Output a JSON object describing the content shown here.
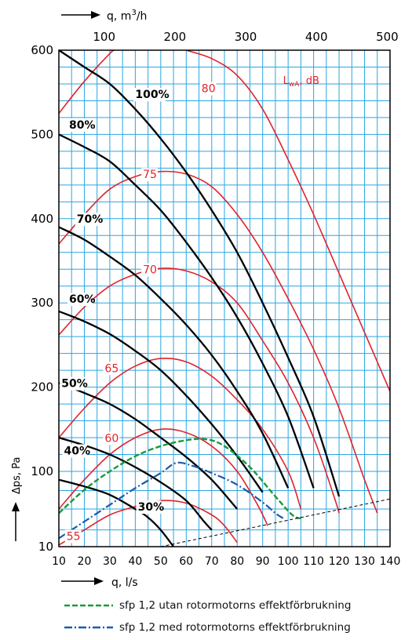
{
  "chart_data": {
    "type": "line",
    "top_axis": {
      "label_prefix": "q, m",
      "label_sup": "3",
      "label_suffix": "/h",
      "range": [
        36,
        504
      ],
      "ticks": [
        100,
        200,
        300,
        400,
        500
      ]
    },
    "x_axis": {
      "label": "q, l/s",
      "range": [
        10,
        140
      ],
      "ticks": [
        10,
        20,
        30,
        40,
        50,
        60,
        70,
        80,
        90,
        100,
        110,
        120,
        130,
        140
      ]
    },
    "y_axis": {
      "label": "Δps, Pa",
      "ticks": [
        10,
        100,
        200,
        300,
        400,
        500,
        600
      ],
      "note": "bottom segment compressed (10 to ~55 Pa), linear above"
    },
    "grid": true,
    "fan_curves": [
      {
        "name": "100%",
        "points": [
          [
            10,
            600
          ],
          [
            20,
            580
          ],
          [
            30,
            560
          ],
          [
            40,
            530
          ],
          [
            50,
            495
          ],
          [
            60,
            455
          ],
          [
            70,
            410
          ],
          [
            80,
            360
          ],
          [
            90,
            300
          ],
          [
            100,
            235
          ],
          [
            110,
            165
          ],
          [
            120,
            70
          ]
        ]
      },
      {
        "name": "80%",
        "points": [
          [
            10,
            500
          ],
          [
            20,
            485
          ],
          [
            30,
            468
          ],
          [
            40,
            440
          ],
          [
            50,
            410
          ],
          [
            60,
            372
          ],
          [
            70,
            330
          ],
          [
            80,
            283
          ],
          [
            90,
            228
          ],
          [
            100,
            165
          ],
          [
            110,
            80
          ]
        ]
      },
      {
        "name": "70%",
        "points": [
          [
            10,
            390
          ],
          [
            20,
            375
          ],
          [
            30,
            355
          ],
          [
            40,
            333
          ],
          [
            50,
            305
          ],
          [
            60,
            274
          ],
          [
            70,
            238
          ],
          [
            80,
            195
          ],
          [
            90,
            145
          ],
          [
            100,
            80
          ]
        ]
      },
      {
        "name": "60%",
        "points": [
          [
            10,
            290
          ],
          [
            20,
            278
          ],
          [
            30,
            263
          ],
          [
            40,
            243
          ],
          [
            50,
            220
          ],
          [
            60,
            190
          ],
          [
            70,
            156
          ],
          [
            80,
            118
          ],
          [
            90,
            75
          ]
        ]
      },
      {
        "name": "50%",
        "points": [
          [
            10,
            205
          ],
          [
            20,
            193
          ],
          [
            30,
            180
          ],
          [
            40,
            162
          ],
          [
            50,
            140
          ],
          [
            60,
            117
          ],
          [
            70,
            90
          ],
          [
            80,
            55
          ]
        ]
      },
      {
        "name": "40%",
        "points": [
          [
            10,
            140
          ],
          [
            20,
            131
          ],
          [
            30,
            120
          ],
          [
            40,
            105
          ],
          [
            50,
            87
          ],
          [
            60,
            65
          ],
          [
            67,
            40
          ],
          [
            70,
            30
          ]
        ]
      },
      {
        "name": "30%",
        "points": [
          [
            10,
            90
          ],
          [
            20,
            82
          ],
          [
            30,
            72
          ],
          [
            40,
            55
          ],
          [
            45,
            45
          ],
          [
            50,
            30
          ],
          [
            55,
            10
          ]
        ]
      }
    ],
    "sound_curves": [
      {
        "name": "80",
        "points": [
          [
            10,
            525
          ],
          [
            20,
            563
          ],
          [
            30,
            596
          ],
          [
            32,
            600
          ]
        ],
        "points2": [
          [
            60,
            600
          ],
          [
            70,
            590
          ],
          [
            80,
            570
          ],
          [
            90,
            530
          ],
          [
            100,
            470
          ],
          [
            110,
            405
          ],
          [
            120,
            335
          ],
          [
            130,
            265
          ],
          [
            140,
            195
          ]
        ]
      },
      {
        "name": "75",
        "points": [
          [
            10,
            370
          ],
          [
            20,
            405
          ],
          [
            30,
            435
          ],
          [
            40,
            450
          ],
          [
            50,
            456
          ],
          [
            60,
            453
          ],
          [
            70,
            438
          ],
          [
            80,
            405
          ],
          [
            90,
            360
          ],
          [
            100,
            305
          ],
          [
            110,
            245
          ],
          [
            120,
            175
          ],
          [
            130,
            90
          ],
          [
            135,
            50
          ]
        ]
      },
      {
        "name": "70",
        "points": [
          [
            10,
            262
          ],
          [
            20,
            295
          ],
          [
            30,
            320
          ],
          [
            40,
            334
          ],
          [
            50,
            341
          ],
          [
            60,
            338
          ],
          [
            70,
            325
          ],
          [
            80,
            300
          ],
          [
            90,
            255
          ],
          [
            100,
            205
          ],
          [
            110,
            140
          ],
          [
            118,
            70
          ],
          [
            120,
            50
          ]
        ]
      },
      {
        "name": "65",
        "points": [
          [
            10,
            140
          ],
          [
            20,
            175
          ],
          [
            30,
            205
          ],
          [
            40,
            225
          ],
          [
            50,
            234
          ],
          [
            60,
            230
          ],
          [
            70,
            213
          ],
          [
            80,
            185
          ],
          [
            90,
            150
          ],
          [
            100,
            100
          ],
          [
            105,
            55
          ]
        ]
      },
      {
        "name": "60",
        "points": [
          [
            10,
            55
          ],
          [
            20,
            90
          ],
          [
            30,
            120
          ],
          [
            40,
            140
          ],
          [
            50,
            150
          ],
          [
            60,
            146
          ],
          [
            70,
            130
          ],
          [
            80,
            100
          ],
          [
            88,
            60
          ],
          [
            92,
            35
          ]
        ]
      },
      {
        "name": "55",
        "points": [
          [
            10,
            12
          ],
          [
            20,
            30
          ],
          [
            30,
            48
          ],
          [
            40,
            58
          ],
          [
            50,
            65
          ],
          [
            60,
            62
          ],
          [
            70,
            48
          ],
          [
            75,
            35
          ],
          [
            80,
            15
          ]
        ]
      }
    ],
    "sfp_utan": [
      [
        10,
        50
      ],
      [
        20,
        78
      ],
      [
        30,
        100
      ],
      [
        40,
        118
      ],
      [
        50,
        130
      ],
      [
        60,
        137
      ],
      [
        68,
        138
      ],
      [
        75,
        130
      ],
      [
        85,
        105
      ],
      [
        95,
        70
      ],
      [
        102,
        47
      ],
      [
        106,
        44
      ]
    ],
    "sfp_med": [
      [
        10,
        20
      ],
      [
        20,
        40
      ],
      [
        30,
        60
      ],
      [
        40,
        80
      ],
      [
        50,
        98
      ],
      [
        56,
        110
      ],
      [
        62,
        107
      ],
      [
        70,
        98
      ],
      [
        80,
        84
      ],
      [
        90,
        63
      ],
      [
        95,
        50
      ],
      [
        98,
        44
      ]
    ],
    "limit_line": [
      [
        50,
        10
      ],
      [
        140,
        67
      ]
    ],
    "annotations": {
      "sound_unit_base": "L",
      "sound_unit_sub": "wA",
      "sound_unit_suffix": ", dB"
    },
    "colors": {
      "grid": "#2aa6e0",
      "fan": "#000000",
      "sound": "#e0232b",
      "sfp_utan": "#1a9a3a",
      "sfp_med": "#1c5aa8"
    }
  },
  "legend": [
    {
      "label": "sfp 1,2 utan rotormotorns effektförbrukning",
      "style": "dashed",
      "color": "#1a9a3a"
    },
    {
      "label": "sfp 1,2 med rotormotorns effektförbrukning",
      "style": "dashdot",
      "color": "#1c5aa8"
    }
  ]
}
